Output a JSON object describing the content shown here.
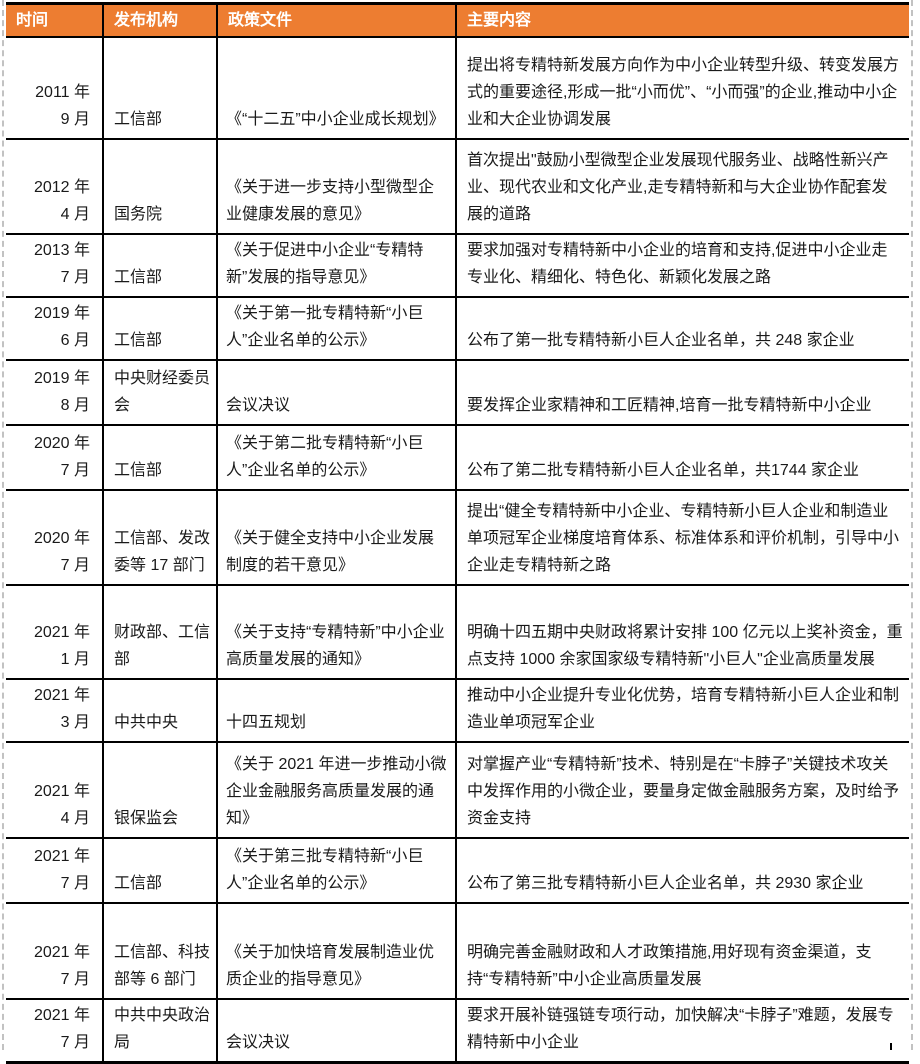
{
  "colors": {
    "header_bg": "#ED7D31",
    "header_text": "#FFFFFF",
    "border_color": "#000000",
    "boundary": "#C2C2C2",
    "text": "#1A1A1A"
  },
  "table": {
    "columns": [
      "时间",
      "发布机构",
      "政策文件",
      "主要内容"
    ],
    "rows": [
      {
        "time": [
          "2011 年",
          "9 月"
        ],
        "org": "工信部",
        "policy": "《“十二五”中小企业成长规划》",
        "content": "提出将专精特新发展方向作为中小企业转型升级、转变发展方式的重要途径,形成一批“小而优”、“小而强”的企业,推动中小企业和大企业协调发展"
      },
      {
        "time": [
          "2012 年",
          "4 月"
        ],
        "org": "国务院",
        "policy": "《关于进一步支持小型微型企业健康发展的意见》",
        "content": "首次提出\"鼓励小型微型企业发展现代服务业、战略性新兴产业、现代农业和文化产业,走专精特新和与大企业协作配套发展的道路"
      },
      {
        "time": [
          "2013 年",
          "7 月"
        ],
        "org": "工信部",
        "policy": "《关于促进中小企业“专精特新”发展的指导意见》",
        "content": "要求加强对专精特新中小企业的培育和支持,促进中小企业走专业化、精细化、特色化、新颖化发展之路"
      },
      {
        "time": [
          "2019 年",
          "6 月"
        ],
        "org": "工信部",
        "policy": "《关于第一批专精特新“小巨人”企业名单的公示》",
        "content": "公布了第一批专精特新小巨人企业名单，共 248 家企业"
      },
      {
        "time": [
          "2019 年",
          "8 月"
        ],
        "org": "中央财经委员会",
        "policy": "会议决议",
        "content": "要发挥企业家精神和工匠精神,培育一批专精特新中小企业"
      },
      {
        "time": [
          "2020 年",
          "7 月"
        ],
        "org": "工信部",
        "policy": "《关于第二批专精特新“小巨人”企业名单的公示》",
        "content": "公布了第二批专精特新小巨人企业名单，共1744 家企业"
      },
      {
        "time": [
          "2020 年",
          "7 月"
        ],
        "org": "工信部、发改委等 17 部门",
        "policy": "《关于健全支持中小企业发展制度的若干意见》",
        "content": "提出“健全专精特新中小企业、专精特新小巨人企业和制造业单项冠军企业梯度培育体系、标准体系和评价机制，引导中小企业走专精特新之路"
      },
      {
        "time": [
          "2021 年",
          "1 月"
        ],
        "org": "财政部、工信部",
        "policy": "《关于支持“专精特新”中小企业高质量发展的通知》",
        "content": "明确十四五期中央财政将累计安排 100 亿元以上奖补资金，重点支持 1000 余家国家级专精特新\"小巨人\"企业高质量发展"
      },
      {
        "time": [
          "2021 年",
          "3 月"
        ],
        "org": "中共中央",
        "policy": "十四五规划",
        "content": "推动中小企业提升专业化优势，培育专精特新小巨人企业和制造业单项冠军企业"
      },
      {
        "time": [
          "2021 年",
          "4 月"
        ],
        "org": "银保监会",
        "policy": "《关于 2021 年进一步推动小微企业金融服务高质量发展的通知》",
        "content": "对掌握产业“专精特新”技术、特别是在“卡脖子”关键技术攻关中发挥作用的小微企业，要量身定做金融服务方案，及时给予资金支持"
      },
      {
        "time": [
          "2021 年",
          "7 月"
        ],
        "org": "工信部",
        "policy": "《关于第三批专精特新“小巨人”企业名单的公示》",
        "content": "公布了第三批专精特新小巨人企业名单，共 2930 家企业"
      },
      {
        "time": [
          "2021 年",
          "7 月"
        ],
        "org": "工信部、科技部等 6 部门",
        "policy": "《关于加快培育发展制造业优质企业的指导意见》",
        "content": "明确完善金融财政和人才政策措施,用好现有资金渠道，支持“专精特新”中小企业高质量发展"
      },
      {
        "time": [
          "2021 年",
          "7 月"
        ],
        "org": "中共中央政治局",
        "policy": "会议决议",
        "content": "要求开展补链强链专项行动，加快解决“卡脖子”难题，发展专精特新中小企业"
      }
    ]
  }
}
